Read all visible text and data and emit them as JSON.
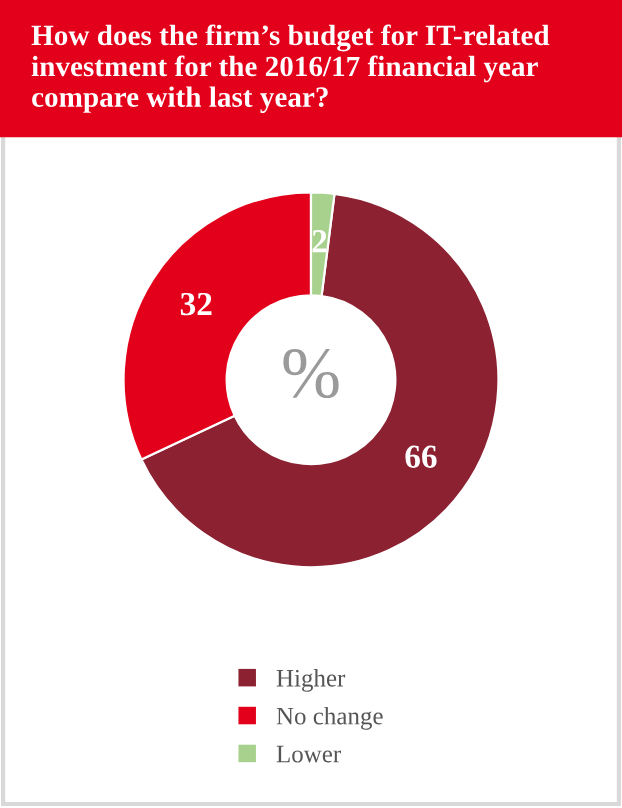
{
  "chart_data": {
    "type": "donut",
    "title": "How does the firm’s budget for IT-related investment for the 2016/17 financial year compare with last year?",
    "categories": [
      "Higher",
      "No change",
      "Lower"
    ],
    "values": [
      66,
      32,
      2
    ],
    "colors": [
      "#8b2131",
      "#e3001b",
      "#a9d18e"
    ],
    "annotations": [
      "%"
    ],
    "data_labels": true,
    "legend": "bottom"
  }
}
